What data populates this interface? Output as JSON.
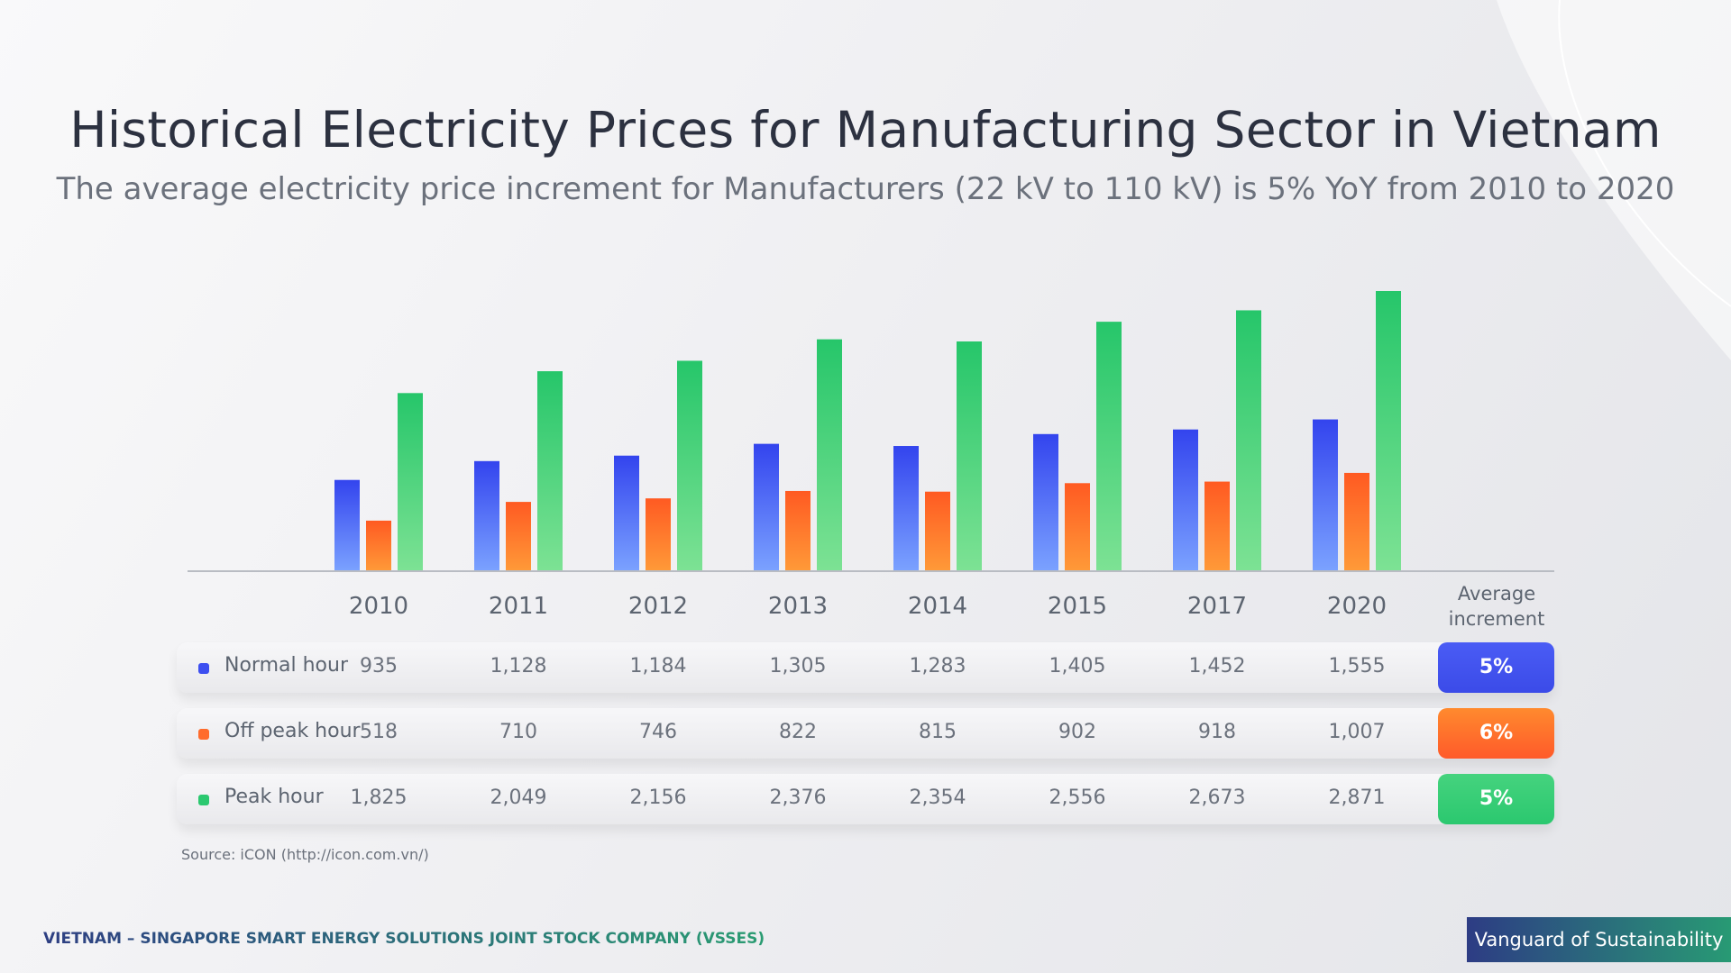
{
  "header": {
    "title": "Historical Electricity Prices for Manufacturing Sector in Vietnam",
    "subtitle": "The average electricity price increment for Manufacturers (22 kV to 110 kV) is 5% YoY from 2010 to 2020"
  },
  "chart_data": {
    "type": "bar",
    "categories": [
      "2010",
      "2011",
      "2012",
      "2013",
      "2014",
      "2015",
      "2017",
      "2020"
    ],
    "series": [
      {
        "name": "Normal hour",
        "values": [
          935,
          1128,
          1184,
          1305,
          1283,
          1405,
          1452,
          1555
        ],
        "labels": [
          "935",
          "1,128",
          "1,184",
          "1,305",
          "1,283",
          "1,405",
          "1,452",
          "1,555"
        ],
        "color": "#3d4ff0",
        "avg_increment": "5%"
      },
      {
        "name": "Off peak hour",
        "values": [
          518,
          710,
          746,
          822,
          815,
          902,
          918,
          1007
        ],
        "labels": [
          "518",
          "710",
          "746",
          "822",
          "815",
          "902",
          "918",
          "1,007"
        ],
        "color": "#ff6b2c",
        "avg_increment": "6%"
      },
      {
        "name": "Peak hour",
        "values": [
          1825,
          2049,
          2156,
          2376,
          2354,
          2556,
          2673,
          2871
        ],
        "labels": [
          "1,825",
          "2,049",
          "2,156",
          "2,376",
          "2,354",
          "2,556",
          "2,673",
          "2,871"
        ],
        "color": "#2bc86f",
        "avg_increment": "5%"
      }
    ],
    "ylim": [
      0,
      2871
    ],
    "grid": false,
    "avg_header": "Average increment"
  },
  "source": "Source: iCON (http://icon.com.vn/)",
  "footer": {
    "company": "VIETNAM – SINGAPORE SMART ENERGY SOLUTIONS JOINT STOCK COMPANY (VSSES)",
    "tagline": "Vanguard of Sustainability"
  }
}
